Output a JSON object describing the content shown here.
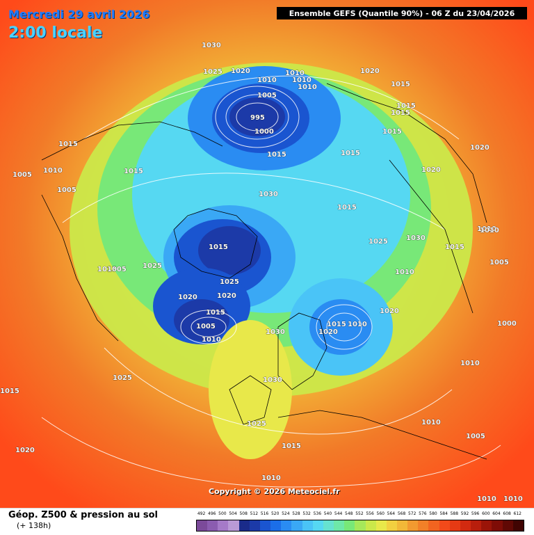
{
  "header": {
    "date": "Mercredi 29 avril 2026",
    "time": "2:00 locale",
    "ensemble": "Ensemble GEFS  (Quantile 90%) - 06 Z du 23/04/2026"
  },
  "copyright": "Copyright © 2026 Meteociel.fr",
  "footer": {
    "title": "Géop. Z500 & pression au sol",
    "subtitle": "(+ 138h)"
  },
  "scale": {
    "labels": [
      "492",
      "496",
      "500",
      "504",
      "508",
      "512",
      "516",
      "520",
      "524",
      "528",
      "532",
      "536",
      "540",
      "544",
      "548",
      "552",
      "556",
      "560",
      "564",
      "568",
      "572",
      "576",
      "580",
      "584",
      "588",
      "592",
      "596",
      "600",
      "604",
      "608",
      "612"
    ],
    "colors": [
      "#7b4a9a",
      "#8b5cb0",
      "#a57ac8",
      "#b99ad6",
      "#1a2b8a",
      "#1c3aa8",
      "#1a55d0",
      "#1b6ee8",
      "#2a8cf2",
      "#3aa8f5",
      "#4ac4f7",
      "#56d8f2",
      "#66e2d0",
      "#6ee8a8",
      "#78e878",
      "#a6e85a",
      "#cbe84a",
      "#e8e84a",
      "#f2d040",
      "#f2b838",
      "#f29a30",
      "#f28028",
      "#f26420",
      "#f24a1a",
      "#e63a14",
      "#d22a10",
      "#b81e0c",
      "#9a1408",
      "#7e0c06",
      "#600804",
      "#400402"
    ]
  },
  "pressure_labels": [
    {
      "text": "1030"
    },
    {
      "text": "1020"
    },
    {
      "text": "1025"
    },
    {
      "text": "1010"
    },
    {
      "text": "1010"
    },
    {
      "text": "1010"
    },
    {
      "text": "1010"
    },
    {
      "text": "1020"
    },
    {
      "text": "1005"
    },
    {
      "text": "995"
    },
    {
      "text": "1000"
    },
    {
      "text": "1015"
    },
    {
      "text": "1015"
    },
    {
      "text": "1015"
    },
    {
      "text": "1015"
    },
    {
      "text": "1015"
    },
    {
      "text": "1015"
    },
    {
      "text": "1020"
    },
    {
      "text": "1020"
    },
    {
      "text": "1005"
    },
    {
      "text": "1010"
    },
    {
      "text": "1005"
    },
    {
      "text": "1015"
    },
    {
      "text": "1030"
    },
    {
      "text": "1015"
    },
    {
      "text": "1025"
    },
    {
      "text": "1030"
    },
    {
      "text": "1015"
    },
    {
      "text": "1015"
    },
    {
      "text": "1010"
    },
    {
      "text": "1010"
    },
    {
      "text": "1005"
    },
    {
      "text": "1025"
    },
    {
      "text": "1025"
    },
    {
      "text": "1020"
    },
    {
      "text": "1020"
    },
    {
      "text": "1015"
    },
    {
      "text": "1005"
    },
    {
      "text": "1010"
    },
    {
      "text": "1015"
    },
    {
      "text": "1010"
    },
    {
      "text": "1020"
    },
    {
      "text": "1030"
    },
    {
      "text": "1030"
    },
    {
      "text": "1025"
    },
    {
      "text": "1020"
    },
    {
      "text": "1000"
    },
    {
      "text": "1010"
    },
    {
      "text": "1010"
    },
    {
      "text": "1005"
    },
    {
      "text": "1015"
    },
    {
      "text": "1025"
    },
    {
      "text": "1020"
    },
    {
      "text": "1015"
    },
    {
      "text": "1010"
    },
    {
      "text": "1010"
    },
    {
      "text": "1010"
    },
    {
      "text": "1015"
    },
    {
      "text": "1015"
    },
    {
      "text": "1005"
    },
    {
      "text": "1010"
    }
  ]
}
